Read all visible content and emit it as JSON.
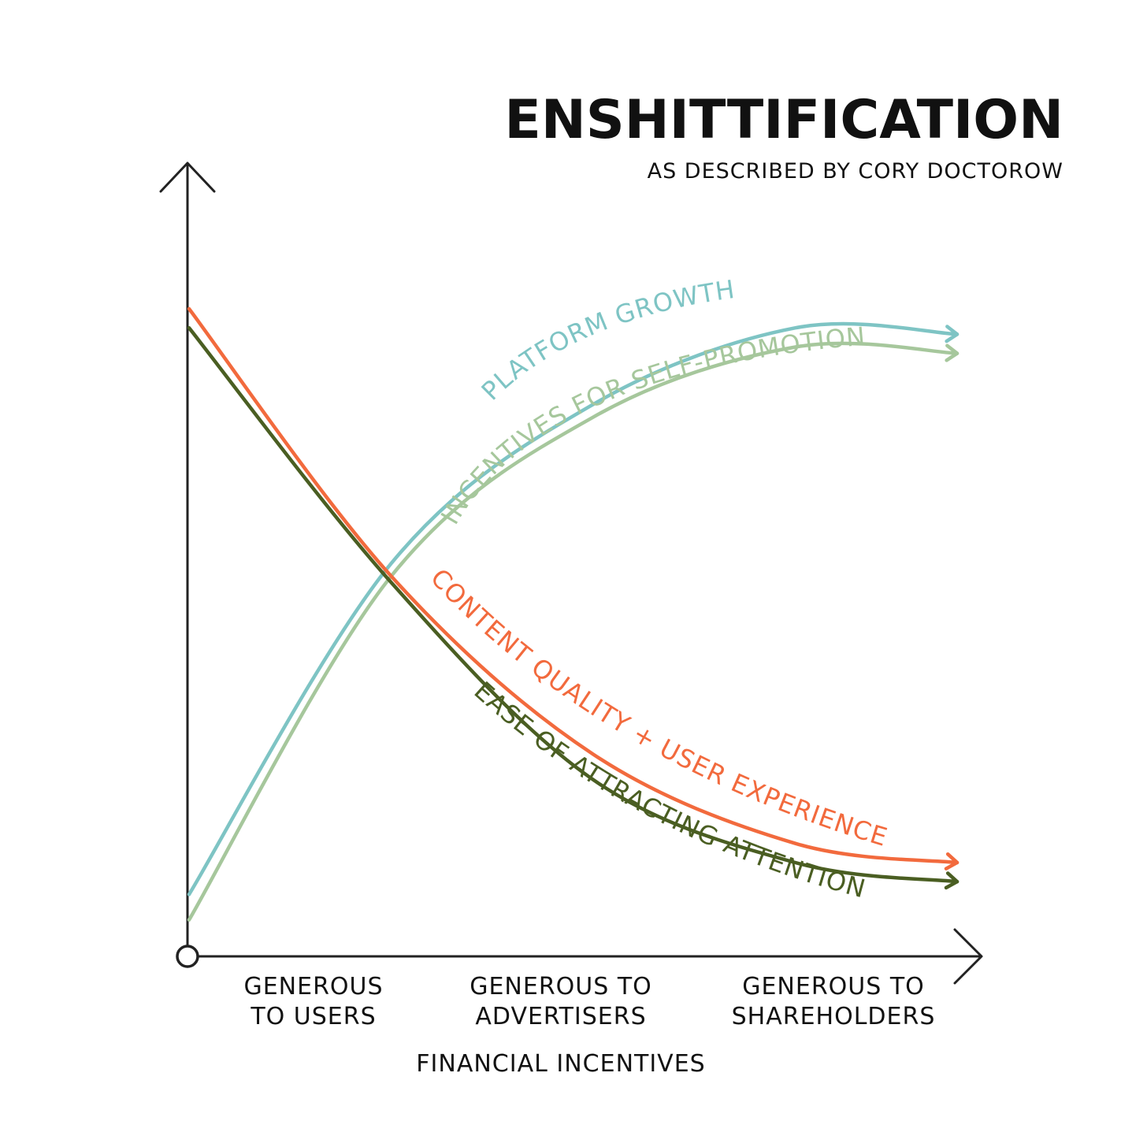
{
  "chart_data": {
    "type": "line",
    "title": "ENSHITTIFICATION",
    "subtitle": "AS DESCRIBED BY CORY DOCTOROW",
    "xlabel": "FINANCIAL INCENTIVES",
    "ylabel": "",
    "xlim": [
      0,
      100
    ],
    "ylim": [
      0,
      100
    ],
    "grid": false,
    "categories": [
      {
        "line1": "GENEROUS",
        "line2": "TO USERS",
        "x": 16
      },
      {
        "line1": "GENEROUS TO",
        "line2": "ADVERTISERS",
        "x": 47
      },
      {
        "line1": "GENEROUS TO",
        "line2": "SHAREHOLDERS",
        "x": 81
      }
    ],
    "series": [
      {
        "name": "PLATFORM GROWTH",
        "color": "#7ec4c4",
        "x": [
          0,
          25,
          50,
          75,
          95
        ],
        "y": [
          8,
          60,
          85,
          97,
          96
        ]
      },
      {
        "name": "INCENTIVES FOR SELF-PROMOTION",
        "color": "#a6c79c",
        "x": [
          0,
          25,
          50,
          75,
          95
        ],
        "y": [
          4,
          58,
          83,
          94,
          93
        ]
      },
      {
        "name": "CONTENT QUALITY + USER EXPERIENCE",
        "color": "#f26a3d",
        "x": [
          0,
          25,
          50,
          75,
          95
        ],
        "y": [
          100,
          58,
          30,
          16,
          13
        ]
      },
      {
        "name": "EASE OF ATTRACTING ATTENTION",
        "color": "#4a5e22",
        "x": [
          0,
          25,
          50,
          75,
          95
        ],
        "y": [
          97,
          57,
          26,
          13,
          10
        ]
      }
    ]
  }
}
